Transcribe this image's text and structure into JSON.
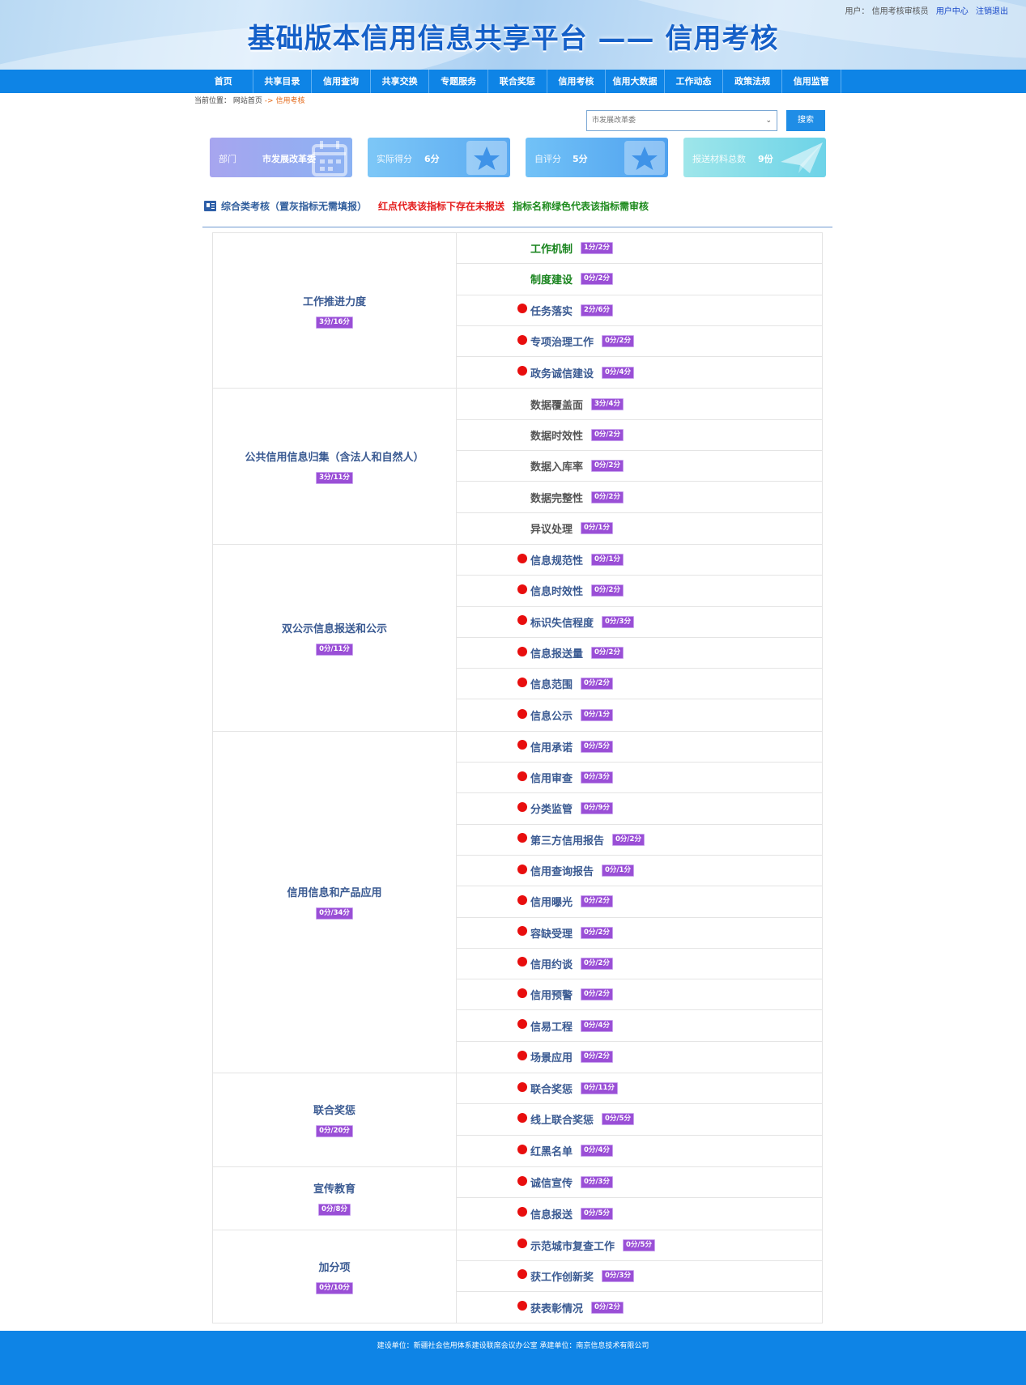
{
  "header": {
    "title": "基础版本信用信息共享平台 —— 信用考核",
    "user_label": "用户：",
    "user_name": "信用考核审核员",
    "user_center": "用户中心",
    "logout": "注销退出"
  },
  "nav": [
    "首页",
    "共享目录",
    "信用查询",
    "共享交换",
    "专题服务",
    "联合奖惩",
    "信用考核",
    "信用大数据",
    "工作动态",
    "政策法规",
    "信用监管"
  ],
  "breadcrumb": {
    "label": "当前位置：",
    "home": "网站首页",
    "sep": " -> ",
    "current": "信用考核"
  },
  "search": {
    "selected": "市发展改革委",
    "button": "搜索"
  },
  "cards": [
    {
      "label": "部门",
      "value": "市发展改革委"
    },
    {
      "label": "实际得分",
      "value": "6分"
    },
    {
      "label": "自评分",
      "value": "5分"
    },
    {
      "label": "报送材料总数",
      "value": "9份"
    }
  ],
  "legend": {
    "title": "综合类考核（置灰指标无需填报）",
    "red_note": "红点代表该指标下存在未报送",
    "green_note": "指标名称绿色代表该指标需审核"
  },
  "groups": [
    {
      "name": "工作推进力度",
      "score": "3分/16分",
      "items": [
        {
          "name": "工作机制",
          "score": "1分/2分",
          "dot": false,
          "color": "green"
        },
        {
          "name": "制度建设",
          "score": "0分/2分",
          "dot": false,
          "color": "green"
        },
        {
          "name": "任务落实",
          "score": "2分/6分",
          "dot": true,
          "color": "red"
        },
        {
          "name": "专项治理工作",
          "score": "0分/2分",
          "dot": true,
          "color": "red"
        },
        {
          "name": "政务诚信建设",
          "score": "0分/4分",
          "dot": true,
          "color": "red"
        }
      ]
    },
    {
      "name": "公共信用信息归集（含法人和自然人）",
      "score": "3分/11分",
      "items": [
        {
          "name": "数据覆盖面",
          "score": "3分/4分",
          "dot": false,
          "color": "gray"
        },
        {
          "name": "数据时效性",
          "score": "0分/2分",
          "dot": false,
          "color": "gray"
        },
        {
          "name": "数据入库率",
          "score": "0分/2分",
          "dot": false,
          "color": "gray"
        },
        {
          "name": "数据完整性",
          "score": "0分/2分",
          "dot": false,
          "color": "gray"
        },
        {
          "name": "异议处理",
          "score": "0分/1分",
          "dot": false,
          "color": "gray"
        }
      ]
    },
    {
      "name": "双公示信息报送和公示",
      "score": "0分/11分",
      "items": [
        {
          "name": "信息规范性",
          "score": "0分/1分",
          "dot": true,
          "color": "red"
        },
        {
          "name": "信息时效性",
          "score": "0分/2分",
          "dot": true,
          "color": "red"
        },
        {
          "name": "标识失信程度",
          "score": "0分/3分",
          "dot": true,
          "color": "red"
        },
        {
          "name": "信息报送量",
          "score": "0分/2分",
          "dot": true,
          "color": "red"
        },
        {
          "name": "信息范围",
          "score": "0分/2分",
          "dot": true,
          "color": "red"
        },
        {
          "name": "信息公示",
          "score": "0分/1分",
          "dot": true,
          "color": "red"
        }
      ]
    },
    {
      "name": "信用信息和产品应用",
      "score": "0分/34分",
      "items": [
        {
          "name": "信用承诺",
          "score": "0分/5分",
          "dot": true,
          "color": "red"
        },
        {
          "name": "信用审查",
          "score": "0分/3分",
          "dot": true,
          "color": "red"
        },
        {
          "name": "分类监管",
          "score": "0分/9分",
          "dot": true,
          "color": "red"
        },
        {
          "name": "第三方信用报告",
          "score": "0分/2分",
          "dot": true,
          "color": "red"
        },
        {
          "name": "信用查询报告",
          "score": "0分/1分",
          "dot": true,
          "color": "red"
        },
        {
          "name": "信用曝光",
          "score": "0分/2分",
          "dot": true,
          "color": "red"
        },
        {
          "name": "容缺受理",
          "score": "0分/2分",
          "dot": true,
          "color": "red"
        },
        {
          "name": "信用约谈",
          "score": "0分/2分",
          "dot": true,
          "color": "red"
        },
        {
          "name": "信用预警",
          "score": "0分/2分",
          "dot": true,
          "color": "red"
        },
        {
          "name": "信易工程",
          "score": "0分/4分",
          "dot": true,
          "color": "red"
        },
        {
          "name": "场景应用",
          "score": "0分/2分",
          "dot": true,
          "color": "red"
        }
      ]
    },
    {
      "name": "联合奖惩",
      "score": "0分/20分",
      "items": [
        {
          "name": "联合奖惩",
          "score": "0分/11分",
          "dot": true,
          "color": "red"
        },
        {
          "name": "线上联合奖惩",
          "score": "0分/5分",
          "dot": true,
          "color": "red"
        },
        {
          "name": "红黑名单",
          "score": "0分/4分",
          "dot": true,
          "color": "red"
        }
      ]
    },
    {
      "name": "宣传教育",
      "score": "0分/8分",
      "items": [
        {
          "name": "诚信宣传",
          "score": "0分/3分",
          "dot": true,
          "color": "red"
        },
        {
          "name": "信息报送",
          "score": "0分/5分",
          "dot": true,
          "color": "red"
        }
      ]
    },
    {
      "name": "加分项",
      "score": "0分/10分",
      "items": [
        {
          "name": "示范城市复查工作",
          "score": "0分/5分",
          "dot": true,
          "color": "red"
        },
        {
          "name": "获工作创新奖",
          "score": "0分/3分",
          "dot": true,
          "color": "red"
        },
        {
          "name": "获表彰情况",
          "score": "0分/2分",
          "dot": true,
          "color": "red"
        }
      ]
    }
  ],
  "footer": "建设单位：新疆社会信用体系建设联席会议办公室  承建单位：南京信息技术有限公司"
}
